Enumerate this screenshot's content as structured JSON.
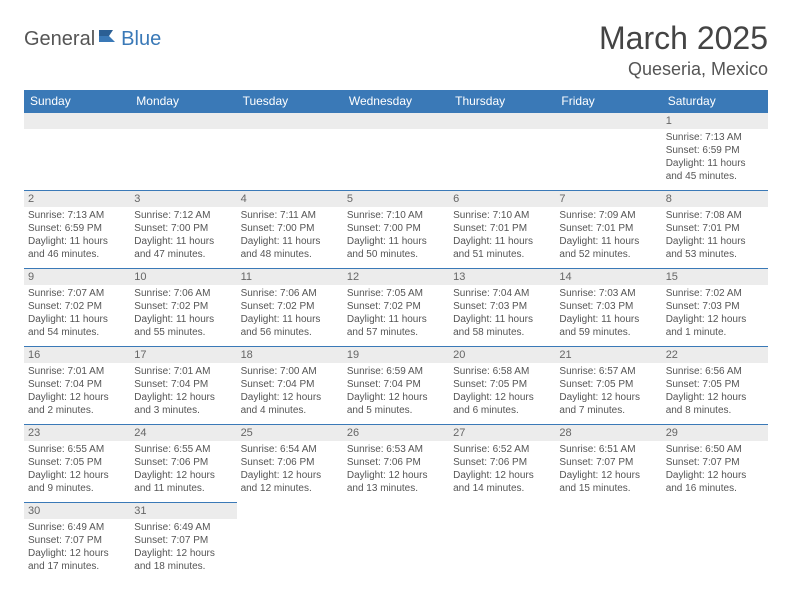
{
  "logo": {
    "part1": "General",
    "part2": "Blue"
  },
  "title": "March 2025",
  "location": "Queseria, Mexico",
  "colors": {
    "header_bg": "#3a79b7",
    "header_text": "#ffffff",
    "date_bar_bg": "#ececec",
    "date_bar_text": "#666666",
    "cell_text": "#555555",
    "divider": "#3a79b7"
  },
  "days": [
    "Sunday",
    "Monday",
    "Tuesday",
    "Wednesday",
    "Thursday",
    "Friday",
    "Saturday"
  ],
  "weeks": [
    [
      null,
      null,
      null,
      null,
      null,
      null,
      {
        "n": "1",
        "sr": "Sunrise: 7:13 AM",
        "ss": "Sunset: 6:59 PM",
        "dl": "Daylight: 11 hours and 45 minutes."
      }
    ],
    [
      {
        "n": "2",
        "sr": "Sunrise: 7:13 AM",
        "ss": "Sunset: 6:59 PM",
        "dl": "Daylight: 11 hours and 46 minutes."
      },
      {
        "n": "3",
        "sr": "Sunrise: 7:12 AM",
        "ss": "Sunset: 7:00 PM",
        "dl": "Daylight: 11 hours and 47 minutes."
      },
      {
        "n": "4",
        "sr": "Sunrise: 7:11 AM",
        "ss": "Sunset: 7:00 PM",
        "dl": "Daylight: 11 hours and 48 minutes."
      },
      {
        "n": "5",
        "sr": "Sunrise: 7:10 AM",
        "ss": "Sunset: 7:00 PM",
        "dl": "Daylight: 11 hours and 50 minutes."
      },
      {
        "n": "6",
        "sr": "Sunrise: 7:10 AM",
        "ss": "Sunset: 7:01 PM",
        "dl": "Daylight: 11 hours and 51 minutes."
      },
      {
        "n": "7",
        "sr": "Sunrise: 7:09 AM",
        "ss": "Sunset: 7:01 PM",
        "dl": "Daylight: 11 hours and 52 minutes."
      },
      {
        "n": "8",
        "sr": "Sunrise: 7:08 AM",
        "ss": "Sunset: 7:01 PM",
        "dl": "Daylight: 11 hours and 53 minutes."
      }
    ],
    [
      {
        "n": "9",
        "sr": "Sunrise: 7:07 AM",
        "ss": "Sunset: 7:02 PM",
        "dl": "Daylight: 11 hours and 54 minutes."
      },
      {
        "n": "10",
        "sr": "Sunrise: 7:06 AM",
        "ss": "Sunset: 7:02 PM",
        "dl": "Daylight: 11 hours and 55 minutes."
      },
      {
        "n": "11",
        "sr": "Sunrise: 7:06 AM",
        "ss": "Sunset: 7:02 PM",
        "dl": "Daylight: 11 hours and 56 minutes."
      },
      {
        "n": "12",
        "sr": "Sunrise: 7:05 AM",
        "ss": "Sunset: 7:02 PM",
        "dl": "Daylight: 11 hours and 57 minutes."
      },
      {
        "n": "13",
        "sr": "Sunrise: 7:04 AM",
        "ss": "Sunset: 7:03 PM",
        "dl": "Daylight: 11 hours and 58 minutes."
      },
      {
        "n": "14",
        "sr": "Sunrise: 7:03 AM",
        "ss": "Sunset: 7:03 PM",
        "dl": "Daylight: 11 hours and 59 minutes."
      },
      {
        "n": "15",
        "sr": "Sunrise: 7:02 AM",
        "ss": "Sunset: 7:03 PM",
        "dl": "Daylight: 12 hours and 1 minute."
      }
    ],
    [
      {
        "n": "16",
        "sr": "Sunrise: 7:01 AM",
        "ss": "Sunset: 7:04 PM",
        "dl": "Daylight: 12 hours and 2 minutes."
      },
      {
        "n": "17",
        "sr": "Sunrise: 7:01 AM",
        "ss": "Sunset: 7:04 PM",
        "dl": "Daylight: 12 hours and 3 minutes."
      },
      {
        "n": "18",
        "sr": "Sunrise: 7:00 AM",
        "ss": "Sunset: 7:04 PM",
        "dl": "Daylight: 12 hours and 4 minutes."
      },
      {
        "n": "19",
        "sr": "Sunrise: 6:59 AM",
        "ss": "Sunset: 7:04 PM",
        "dl": "Daylight: 12 hours and 5 minutes."
      },
      {
        "n": "20",
        "sr": "Sunrise: 6:58 AM",
        "ss": "Sunset: 7:05 PM",
        "dl": "Daylight: 12 hours and 6 minutes."
      },
      {
        "n": "21",
        "sr": "Sunrise: 6:57 AM",
        "ss": "Sunset: 7:05 PM",
        "dl": "Daylight: 12 hours and 7 minutes."
      },
      {
        "n": "22",
        "sr": "Sunrise: 6:56 AM",
        "ss": "Sunset: 7:05 PM",
        "dl": "Daylight: 12 hours and 8 minutes."
      }
    ],
    [
      {
        "n": "23",
        "sr": "Sunrise: 6:55 AM",
        "ss": "Sunset: 7:05 PM",
        "dl": "Daylight: 12 hours and 9 minutes."
      },
      {
        "n": "24",
        "sr": "Sunrise: 6:55 AM",
        "ss": "Sunset: 7:06 PM",
        "dl": "Daylight: 12 hours and 11 minutes."
      },
      {
        "n": "25",
        "sr": "Sunrise: 6:54 AM",
        "ss": "Sunset: 7:06 PM",
        "dl": "Daylight: 12 hours and 12 minutes."
      },
      {
        "n": "26",
        "sr": "Sunrise: 6:53 AM",
        "ss": "Sunset: 7:06 PM",
        "dl": "Daylight: 12 hours and 13 minutes."
      },
      {
        "n": "27",
        "sr": "Sunrise: 6:52 AM",
        "ss": "Sunset: 7:06 PM",
        "dl": "Daylight: 12 hours and 14 minutes."
      },
      {
        "n": "28",
        "sr": "Sunrise: 6:51 AM",
        "ss": "Sunset: 7:07 PM",
        "dl": "Daylight: 12 hours and 15 minutes."
      },
      {
        "n": "29",
        "sr": "Sunrise: 6:50 AM",
        "ss": "Sunset: 7:07 PM",
        "dl": "Daylight: 12 hours and 16 minutes."
      }
    ],
    [
      {
        "n": "30",
        "sr": "Sunrise: 6:49 AM",
        "ss": "Sunset: 7:07 PM",
        "dl": "Daylight: 12 hours and 17 minutes."
      },
      {
        "n": "31",
        "sr": "Sunrise: 6:49 AM",
        "ss": "Sunset: 7:07 PM",
        "dl": "Daylight: 12 hours and 18 minutes."
      },
      null,
      null,
      null,
      null,
      null
    ]
  ]
}
